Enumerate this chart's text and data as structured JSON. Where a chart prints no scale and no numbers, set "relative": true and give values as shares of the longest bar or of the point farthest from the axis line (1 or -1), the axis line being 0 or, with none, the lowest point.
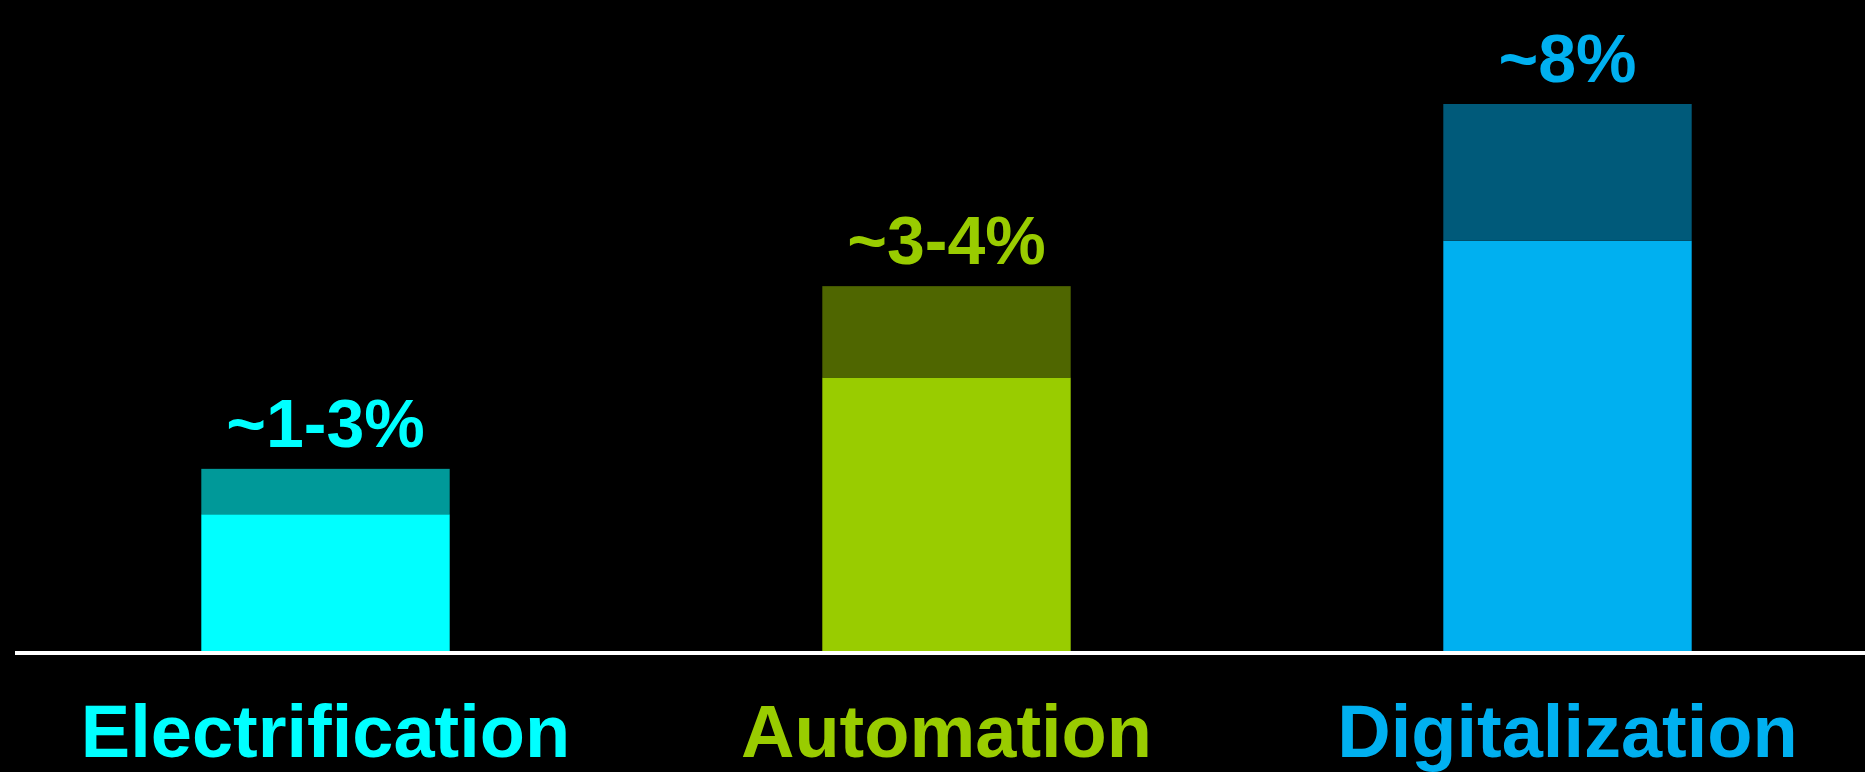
{
  "chart_data": {
    "type": "bar",
    "relative": true,
    "stacked": true,
    "categories": [
      "Electrification",
      "Automation",
      "Digitalization"
    ],
    "series": [
      {
        "colors": [
          "#00ffff",
          "#99cc00",
          "#00b0f0"
        ],
        "values": [
          0.25,
          0.5,
          0.75
        ]
      },
      {
        "colors": [
          "#009999",
          "#4f6600",
          "#005a7a"
        ],
        "values": [
          0.083,
          0.167,
          0.25
        ]
      }
    ],
    "annotations": [
      {
        "text": "~1-3%",
        "x": "Electrification",
        "y": 0.333
      },
      {
        "text": "~3-4%",
        "x": "Automation",
        "y": 0.667
      },
      {
        "text": "~8%",
        "x": "Digitalization",
        "y": 1
      }
    ]
  }
}
